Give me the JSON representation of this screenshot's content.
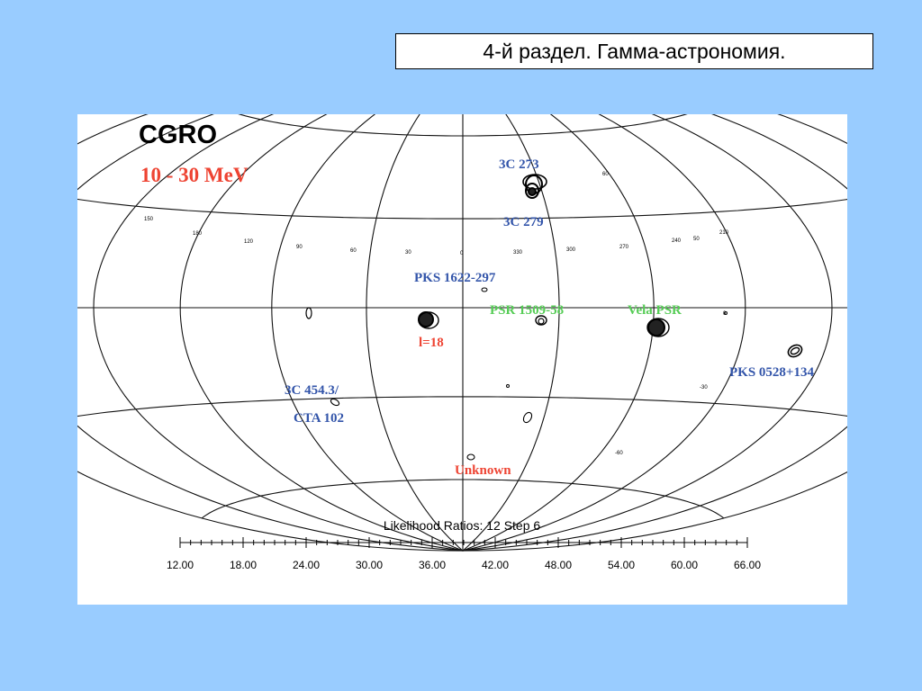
{
  "slide": {
    "title": "4-й раздел. Гамма-астрономия."
  },
  "figure": {
    "mission": "CGRO",
    "energy_band": "10 - 30 MeV",
    "colors": {
      "blue_label": "#3355aa",
      "green_label": "#55cc55",
      "red_label": "#ee4433"
    },
    "sources": [
      {
        "label": "3C 273",
        "color": "blue"
      },
      {
        "label": "3C 279",
        "color": "blue"
      },
      {
        "label": "PKS 1622-297",
        "color": "blue"
      },
      {
        "label": "PSR 1509-58",
        "color": "green"
      },
      {
        "label": "Vela PSR",
        "color": "green"
      },
      {
        "label": "l=18",
        "color": "red"
      },
      {
        "label": "PKS 0528+134",
        "color": "blue"
      },
      {
        "label": "3C 454.3/",
        "color": "blue"
      },
      {
        "label": "CTA 102",
        "color": "blue"
      },
      {
        "label": "Unknown",
        "color": "red"
      }
    ],
    "grid_labels": [
      "150",
      "180",
      "120",
      "90",
      "60",
      "30",
      "0",
      "330",
      "300",
      "270",
      "240",
      "210",
      "50",
      "60",
      "-30",
      "-60",
      "0"
    ],
    "scale": {
      "title": "Likelihood Ratios: 12 Step 6",
      "ticks": [
        "12.00",
        "18.00",
        "24.00",
        "30.00",
        "36.00",
        "42.00",
        "48.00",
        "54.00",
        "60.00",
        "66.00"
      ]
    }
  }
}
